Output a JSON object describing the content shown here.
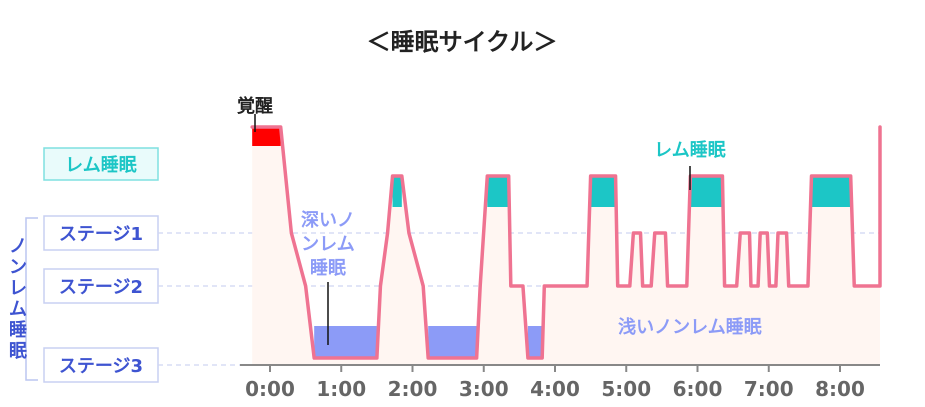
{
  "chart_data": {
    "type": "area",
    "title": "＜睡眠サイクル＞",
    "y_levels": [
      "覚醒",
      "レム睡眠",
      "ステージ1",
      "ステージ2",
      "ステージ3"
    ],
    "y_group_label": "ノンレム睡眠",
    "x_ticks": [
      "0:00",
      "1:00",
      "2:00",
      "3:00",
      "4:00",
      "5:00",
      "6:00",
      "7:00",
      "8:00"
    ],
    "xlim": [
      -0.25,
      8.5
    ],
    "annotations": {
      "deep": "深いノンレム睡眠",
      "rem": "レム睡眠",
      "light": "浅いノンレム睡眠"
    },
    "series": [
      {
        "hypnogram": [
          [
            -0.25,
            "覚醒"
          ],
          [
            0.15,
            "覚醒"
          ],
          [
            0.3,
            "ステージ1"
          ],
          [
            0.5,
            "ステージ2"
          ],
          [
            0.62,
            "ステージ3"
          ],
          [
            1.5,
            "ステージ3"
          ],
          [
            1.55,
            "ステージ2"
          ],
          [
            1.65,
            "ステージ1"
          ],
          [
            1.72,
            "レム睡眠"
          ],
          [
            1.85,
            "レム睡眠"
          ],
          [
            1.95,
            "ステージ1"
          ],
          [
            2.15,
            "ステージ2"
          ],
          [
            2.22,
            "ステージ3"
          ],
          [
            2.9,
            "ステージ3"
          ],
          [
            2.95,
            "ステージ2"
          ],
          [
            3.05,
            "レム睡眠"
          ],
          [
            3.35,
            "レム睡眠"
          ],
          [
            3.38,
            "ステージ2"
          ],
          [
            3.55,
            "ステージ2"
          ],
          [
            3.62,
            "ステージ3"
          ],
          [
            3.82,
            "ステージ3"
          ],
          [
            3.85,
            "ステージ2"
          ],
          [
            4.45,
            "ステージ2"
          ],
          [
            4.5,
            "レム睡眠"
          ],
          [
            4.85,
            "レム睡眠"
          ],
          [
            4.88,
            "ステージ2"
          ],
          [
            5.05,
            "ステージ2"
          ],
          [
            5.1,
            "ステージ1"
          ],
          [
            5.2,
            "ステージ1"
          ],
          [
            5.23,
            "ステージ2"
          ],
          [
            5.35,
            "ステージ2"
          ],
          [
            5.4,
            "ステージ1"
          ],
          [
            5.55,
            "ステージ1"
          ],
          [
            5.58,
            "ステージ2"
          ],
          [
            5.85,
            "ステージ2"
          ],
          [
            5.9,
            "レム睡眠"
          ],
          [
            6.35,
            "レム睡眠"
          ],
          [
            6.38,
            "ステージ2"
          ],
          [
            6.55,
            "ステージ2"
          ],
          [
            6.6,
            "ステージ1"
          ],
          [
            6.73,
            "ステージ1"
          ],
          [
            6.75,
            "ステージ2"
          ],
          [
            6.85,
            "ステージ2"
          ],
          [
            6.88,
            "ステージ1"
          ],
          [
            6.98,
            "ステージ1"
          ],
          [
            7.01,
            "ステージ2"
          ],
          [
            7.1,
            "ステージ2"
          ],
          [
            7.13,
            "ステージ1"
          ],
          [
            7.25,
            "ステージ1"
          ],
          [
            7.28,
            "ステージ2"
          ],
          [
            7.55,
            "ステージ2"
          ],
          [
            7.6,
            "レム睡眠"
          ],
          [
            8.15,
            "レム睡眠"
          ],
          [
            8.2,
            "ステージ2"
          ],
          [
            8.6,
            "ステージ2"
          ],
          [
            8.75,
            "覚醒"
          ],
          [
            9.0,
            "覚醒"
          ]
        ]
      }
    ],
    "colors": {
      "line": "#ef7391",
      "fill": "#fff6f2",
      "awake": "#ff0000",
      "rem": "#1cc6c6",
      "deep": "#8c9bf7",
      "stage_text": "#3e54d1",
      "grid": "#c8cdef",
      "axis": "#888888",
      "tick_text": "#666666"
    }
  }
}
